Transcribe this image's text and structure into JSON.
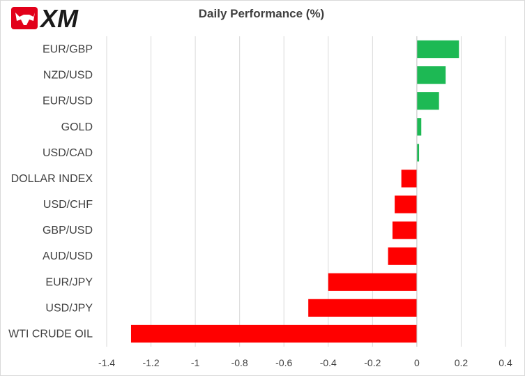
{
  "logo": {
    "text": "XM"
  },
  "chart_data": {
    "type": "bar",
    "orientation": "horizontal",
    "title": "Daily Performance  (%)",
    "xlabel": "",
    "ylabel": "",
    "categories": [
      "EUR/GBP",
      "NZD/USD",
      "EUR/USD",
      "GOLD",
      "USD/CAD",
      "DOLLAR INDEX",
      "USD/CHF",
      "GBP/USD",
      "AUD/USD",
      "EUR/JPY",
      "USD/JPY",
      "WTI CRUDE OIL"
    ],
    "values": [
      0.19,
      0.13,
      0.1,
      0.02,
      0.01,
      -0.07,
      -0.1,
      -0.11,
      -0.13,
      -0.4,
      -0.49,
      -1.29
    ],
    "xlim": [
      -1.4,
      0.4
    ],
    "xticks": [
      "-1.4",
      "-1.2",
      "-1",
      "-0.8",
      "-0.6",
      "-0.4",
      "-0.2",
      "0",
      "0.2",
      "0.4"
    ],
    "tick_values": [
      -1.4,
      -1.2,
      -1.0,
      -0.8,
      -0.6,
      -0.4,
      -0.2,
      0,
      0.2,
      0.4
    ],
    "grid": true,
    "colors": {
      "positive": "#1db954",
      "negative": "#ff0000",
      "grid": "#d9d9d9",
      "axis": "#bfbfbf"
    }
  }
}
